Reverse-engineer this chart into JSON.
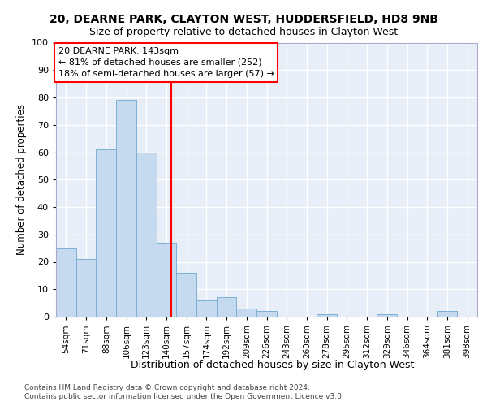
{
  "title_line1": "20, DEARNE PARK, CLAYTON WEST, HUDDERSFIELD, HD8 9NB",
  "title_line2": "Size of property relative to detached houses in Clayton West",
  "xlabel": "Distribution of detached houses by size in Clayton West",
  "ylabel": "Number of detached properties",
  "bin_labels": [
    "54sqm",
    "71sqm",
    "88sqm",
    "106sqm",
    "123sqm",
    "140sqm",
    "157sqm",
    "174sqm",
    "192sqm",
    "209sqm",
    "226sqm",
    "243sqm",
    "260sqm",
    "278sqm",
    "295sqm",
    "312sqm",
    "329sqm",
    "346sqm",
    "364sqm",
    "381sqm",
    "398sqm"
  ],
  "bar_values": [
    25,
    21,
    61,
    79,
    60,
    27,
    16,
    6,
    7,
    3,
    2,
    0,
    0,
    1,
    0,
    0,
    1,
    0,
    0,
    2,
    0
  ],
  "bar_color": "#c5d9ef",
  "bar_edge_color": "#7aafd4",
  "background_color": "#e8eef8",
  "grid_color": "#ffffff",
  "red_line_bin_index": 5.235,
  "annotation_line1": "20 DEARNE PARK: 143sqm",
  "annotation_line2": "← 81% of detached houses are smaller (252)",
  "annotation_line3": "18% of semi-detached houses are larger (57) →",
  "footnote1": "Contains HM Land Registry data © Crown copyright and database right 2024.",
  "footnote2": "Contains public sector information licensed under the Open Government Licence v3.0.",
  "ylim": [
    0,
    100
  ],
  "yticks": [
    0,
    10,
    20,
    30,
    40,
    50,
    60,
    70,
    80,
    90,
    100
  ]
}
